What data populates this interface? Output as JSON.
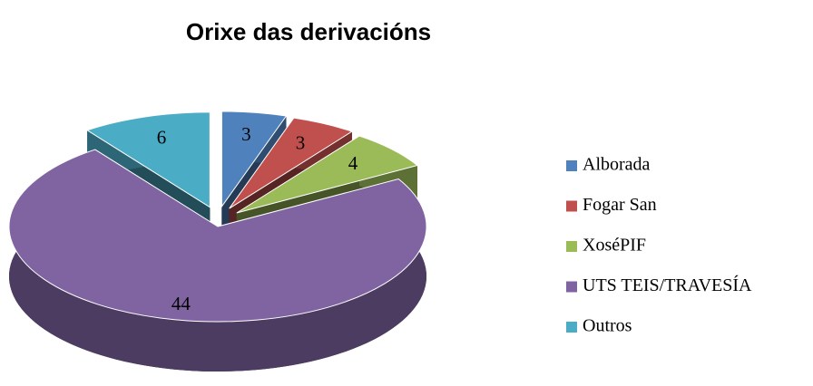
{
  "chart_data": {
    "type": "pie",
    "title": "Orixe das derivacións",
    "categories": [
      "Alborada",
      "Fogar San",
      "XoséPIF",
      "UTS TEIS/TRAVESÍA",
      "Outros"
    ],
    "values": [
      3,
      3,
      4,
      44,
      6
    ],
    "colors": [
      "#4f81bd",
      "#c0504d",
      "#9bbb59",
      "#8064a2",
      "#4bacc6"
    ],
    "legend": "right"
  }
}
